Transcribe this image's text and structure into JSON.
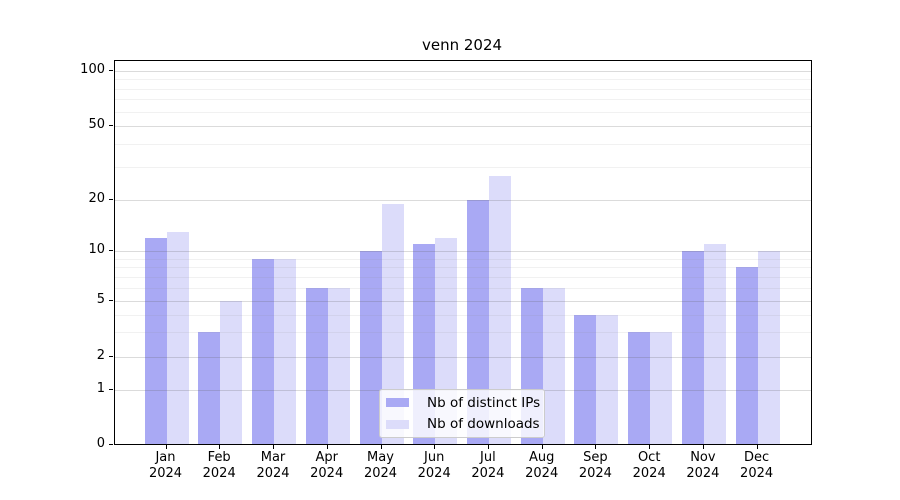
{
  "title": "venn 2024",
  "colors": {
    "ips_bar": "#a9a9f4",
    "downloads_bar": "#dcdcfa",
    "major_grid": "rgba(90,90,90,0.22)",
    "minor_grid": "rgba(140,140,140,0.12)",
    "axis": "#000000"
  },
  "legend": {
    "items": [
      {
        "label": "Nb of distinct IPs",
        "series": "ips"
      },
      {
        "label": "Nb of downloads",
        "series": "downloads"
      }
    ]
  },
  "chart_data": {
    "type": "bar",
    "title": "venn 2024",
    "categories": [
      "Jan 2024",
      "Feb 2024",
      "Mar 2024",
      "Apr 2024",
      "May 2024",
      "Jun 2024",
      "Jul 2024",
      "Aug 2024",
      "Sep 2024",
      "Oct 2024",
      "Nov 2024",
      "Dec 2024"
    ],
    "series": [
      {
        "name": "Nb of distinct IPs",
        "color_key": "ips_bar",
        "values": [
          12,
          3,
          9,
          6,
          10,
          11,
          20,
          6,
          4,
          3,
          10,
          8
        ]
      },
      {
        "name": "Nb of downloads",
        "color_key": "downloads_bar",
        "values": [
          13,
          5,
          9,
          6,
          19,
          12,
          27,
          6,
          4,
          3,
          11,
          10
        ]
      }
    ],
    "xlabel": "",
    "ylabel": "",
    "yscale": "log-like (0,1,2,5,10,20,50,100)",
    "y_major_ticks": [
      0,
      1,
      2,
      5,
      10,
      20,
      50,
      100
    ],
    "y_minor_ticks": [
      3,
      4,
      6,
      7,
      8,
      9,
      30,
      40,
      60,
      70,
      80,
      90
    ],
    "ylim": [
      0,
      130
    ],
    "grid": true,
    "legend_position": "lower center"
  }
}
